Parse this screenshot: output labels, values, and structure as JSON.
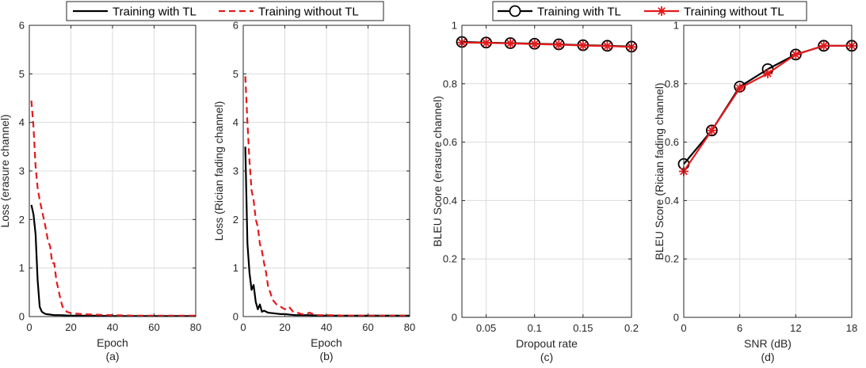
{
  "colors": {
    "with_tl": "#000000",
    "without_tl": "#e31a1c",
    "grid": "#dcdcdc",
    "axis": "#262626"
  },
  "chart_data": [
    {
      "panel": "(a)",
      "type": "line",
      "xlabel": "Epoch",
      "ylabel": "Loss (erasure channel)",
      "xlim": [
        0,
        80
      ],
      "ylim": [
        0,
        6
      ],
      "xticks": [
        0,
        20,
        40,
        60,
        80
      ],
      "yticks": [
        0,
        1,
        2,
        3,
        4,
        5,
        6
      ],
      "grid": true,
      "legend": "top-center",
      "series": [
        {
          "name": "Training with TL",
          "style": "solid",
          "x": [
            1,
            2,
            3,
            4,
            5,
            6,
            7,
            8,
            10,
            12,
            15,
            20,
            25,
            30,
            40,
            50,
            60,
            70,
            80
          ],
          "y": [
            2.3,
            2.1,
            1.7,
            0.75,
            0.2,
            0.1,
            0.07,
            0.05,
            0.04,
            0.03,
            0.03,
            0.02,
            0.02,
            0.02,
            0.01,
            0.01,
            0.01,
            0.01,
            0.01
          ]
        },
        {
          "name": "Training without TL",
          "style": "dashed",
          "x": [
            1,
            2,
            3,
            4,
            5,
            6,
            7,
            8,
            9,
            10,
            11,
            12,
            13,
            14,
            15,
            16,
            18,
            20,
            25,
            30,
            40,
            50,
            60,
            70,
            80
          ],
          "y": [
            4.45,
            3.9,
            3.1,
            2.65,
            2.4,
            2.2,
            2.0,
            1.8,
            1.55,
            1.45,
            1.1,
            1.1,
            0.75,
            0.55,
            0.35,
            0.2,
            0.1,
            0.07,
            0.05,
            0.04,
            0.03,
            0.02,
            0.02,
            0.02,
            0.02
          ]
        }
      ]
    },
    {
      "panel": "(b)",
      "type": "line",
      "xlabel": "Epoch",
      "ylabel": "Loss (Rician fading channel)",
      "xlim": [
        0,
        80
      ],
      "ylim": [
        0,
        6
      ],
      "xticks": [
        0,
        20,
        40,
        60,
        80
      ],
      "yticks": [
        0,
        1,
        2,
        3,
        4,
        5,
        6
      ],
      "grid": true,
      "legend": "top-center",
      "series": [
        {
          "name": "Training with TL",
          "style": "solid",
          "x": [
            1,
            2,
            3,
            4,
            5,
            6,
            7,
            8,
            9,
            10,
            12,
            14,
            16,
            18,
            20,
            22,
            25,
            30,
            40,
            50,
            60,
            70,
            80
          ],
          "y": [
            3.5,
            1.5,
            0.9,
            0.55,
            0.65,
            0.3,
            0.15,
            0.25,
            0.1,
            0.12,
            0.08,
            0.07,
            0.06,
            0.05,
            0.05,
            0.04,
            0.03,
            0.03,
            0.02,
            0.02,
            0.02,
            0.02,
            0.02
          ]
        },
        {
          "name": "Training without TL",
          "style": "dashed",
          "x": [
            1,
            2,
            3,
            4,
            5,
            6,
            7,
            8,
            9,
            10,
            11,
            12,
            13,
            14,
            15,
            16,
            18,
            20,
            22,
            24,
            26,
            28,
            30,
            32,
            34,
            36,
            40,
            50,
            60,
            70,
            80
          ],
          "y": [
            4.95,
            4.0,
            3.2,
            2.6,
            2.4,
            2.0,
            1.85,
            1.5,
            1.35,
            1.1,
            0.9,
            0.6,
            0.5,
            0.35,
            0.3,
            0.25,
            0.2,
            0.15,
            0.2,
            0.1,
            0.08,
            0.05,
            0.05,
            0.08,
            0.04,
            0.03,
            0.03,
            0.02,
            0.02,
            0.02,
            0.02
          ]
        }
      ]
    },
    {
      "panel": "(c)",
      "type": "line",
      "xlabel": "Dropout rate",
      "ylabel": "BLEU Score (erasure channel)",
      "xlim": [
        0.025,
        0.2
      ],
      "ylim": [
        0,
        1
      ],
      "xticks": [
        0.05,
        0.1,
        0.15,
        0.2
      ],
      "xticklabels": [
        "0.05",
        "0.1",
        "0.15",
        "0.2"
      ],
      "yticks": [
        0,
        0.2,
        0.4,
        0.6,
        0.8,
        1
      ],
      "yticklabels": [
        "0",
        "0.2",
        "0.4",
        "0.6",
        "0.8",
        "1"
      ],
      "grid": true,
      "legend": "top-center",
      "series": [
        {
          "name": "Training with TL",
          "marker": "circle",
          "x": [
            0.025,
            0.05,
            0.075,
            0.1,
            0.125,
            0.15,
            0.175,
            0.2
          ],
          "y": [
            0.943,
            0.941,
            0.939,
            0.937,
            0.935,
            0.932,
            0.93,
            0.927
          ]
        },
        {
          "name": "Training without TL",
          "marker": "asterisk",
          "x": [
            0.025,
            0.05,
            0.075,
            0.1,
            0.125,
            0.15,
            0.175,
            0.2
          ],
          "y": [
            0.941,
            0.94,
            0.938,
            0.936,
            0.934,
            0.931,
            0.929,
            0.926
          ]
        }
      ]
    },
    {
      "panel": "(d)",
      "type": "line",
      "xlabel": "SNR (dB)",
      "ylabel": "BLEU Score (Rician fading channel)",
      "xlim": [
        0,
        18
      ],
      "ylim": [
        0,
        1
      ],
      "xticks": [
        0,
        6,
        12,
        18
      ],
      "yticks": [
        0,
        0.2,
        0.4,
        0.6,
        0.8,
        1
      ],
      "yticklabels": [
        "0",
        "0.2",
        "0.4",
        "0.6",
        "0.8",
        "1"
      ],
      "grid": true,
      "legend": "top-center",
      "series": [
        {
          "name": "Training with TL",
          "marker": "circle",
          "x": [
            0,
            3,
            6,
            9,
            12,
            15,
            18
          ],
          "y": [
            0.525,
            0.64,
            0.79,
            0.85,
            0.9,
            0.93,
            0.93
          ]
        },
        {
          "name": "Training without TL",
          "marker": "asterisk",
          "x": [
            0,
            3,
            6,
            9,
            12,
            15,
            18
          ],
          "y": [
            0.5,
            0.64,
            0.785,
            0.835,
            0.9,
            0.93,
            0.93
          ]
        }
      ]
    }
  ]
}
